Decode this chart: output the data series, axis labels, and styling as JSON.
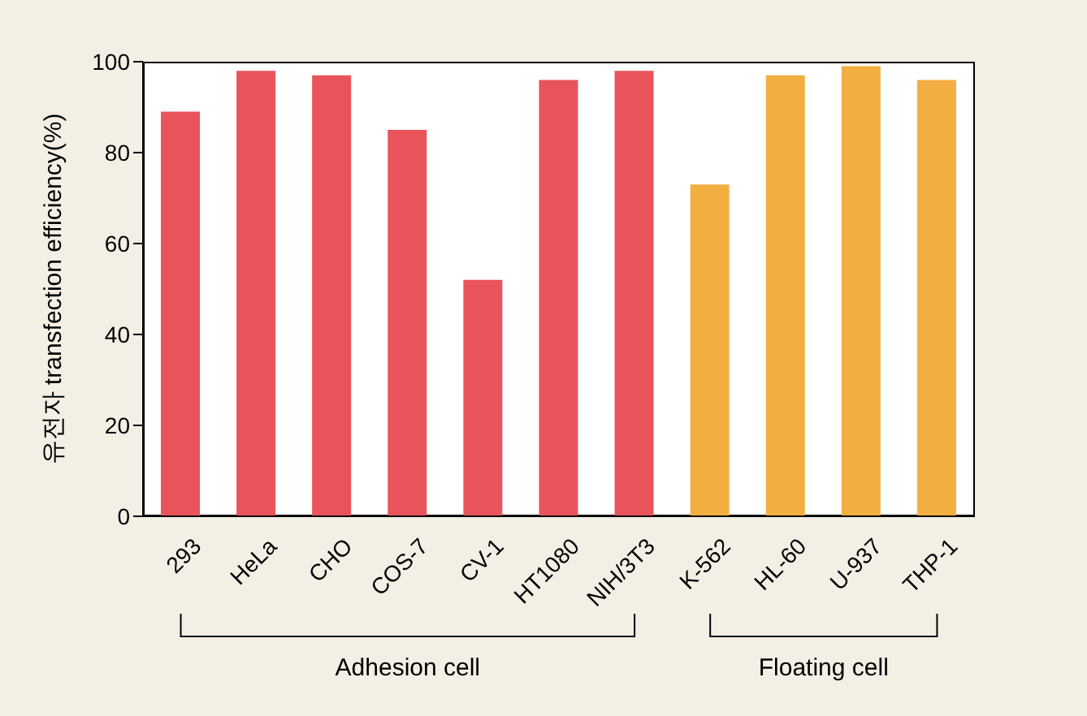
{
  "chart_data": {
    "type": "bar",
    "ylabel": "유전자 transfection efficiency(%)",
    "categories": [
      "293",
      "HeLa",
      "CHO",
      "COS-7",
      "CV-1",
      "HT1080",
      "NIH/3T3",
      "K-562",
      "HL-60",
      "U-937",
      "THP-1"
    ],
    "values": [
      89,
      98,
      97,
      85,
      52,
      96,
      98,
      73,
      97,
      99,
      96
    ],
    "colors": [
      "#e8545a",
      "#e8545a",
      "#e8545a",
      "#e8545a",
      "#e8545a",
      "#e8545a",
      "#e8545a",
      "#f3ae42",
      "#f3ae42",
      "#f3ae42",
      "#f3ae42"
    ],
    "ylim": [
      0,
      100
    ],
    "yticks": [
      0,
      20,
      40,
      60,
      80,
      100
    ],
    "grid": false,
    "annotations": [
      "Adhesion cell",
      "Floating cell"
    ]
  }
}
